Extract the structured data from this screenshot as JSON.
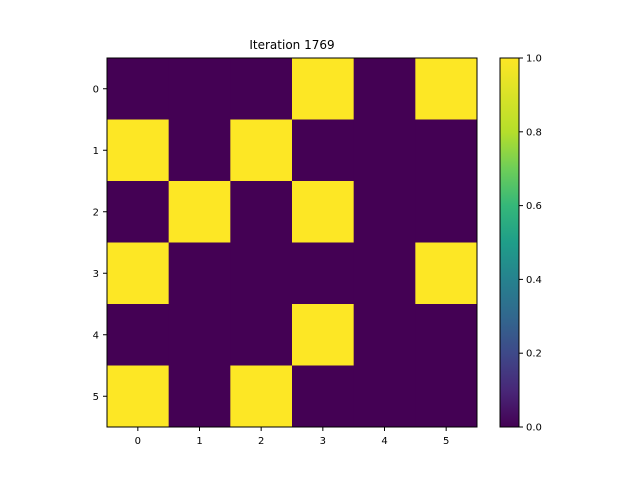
{
  "chart_data": {
    "type": "heatmap",
    "title": "Iteration 1769",
    "xlabel": "",
    "ylabel": "",
    "x_ticks": [
      "0",
      "1",
      "2",
      "3",
      "4",
      "5"
    ],
    "y_ticks": [
      "0",
      "1",
      "2",
      "3",
      "4",
      "5"
    ],
    "values": [
      [
        0,
        0,
        0,
        1,
        0,
        1
      ],
      [
        1,
        0,
        1,
        0,
        0,
        0
      ],
      [
        0,
        1,
        0,
        1,
        0,
        0
      ],
      [
        1,
        0,
        0,
        0,
        0,
        1
      ],
      [
        0,
        0,
        0,
        1,
        0,
        0
      ],
      [
        1,
        0,
        1,
        0,
        0,
        0
      ]
    ],
    "colormap": "viridis",
    "vmin": 0.0,
    "vmax": 1.0,
    "colorbar_ticks": [
      "0.0",
      "0.2",
      "0.4",
      "0.6",
      "0.8",
      "1.0"
    ],
    "colors": {
      "low": "#440154",
      "high": "#fde725"
    }
  }
}
